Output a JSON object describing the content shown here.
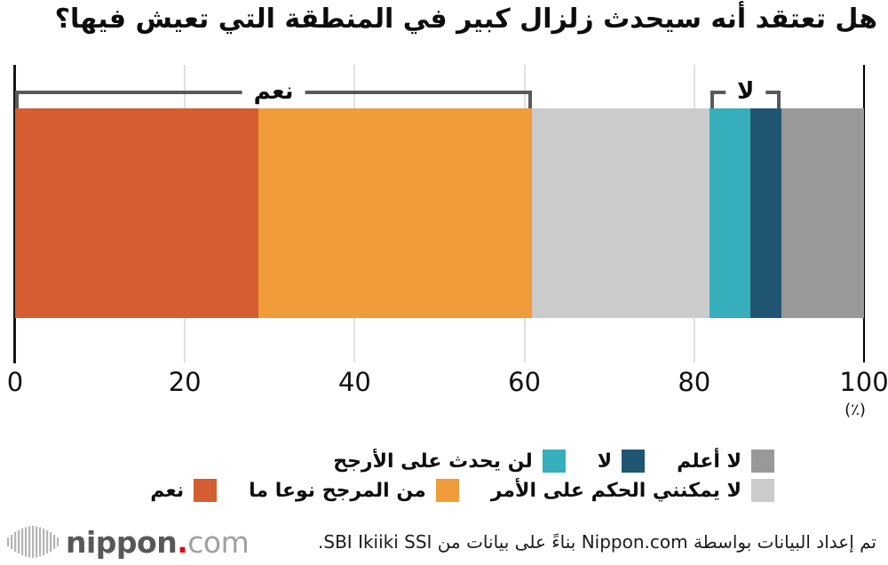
{
  "title": "هل تعتقد أنه سيحدث زلزال كبير في المنطقة التي تعيش فيها؟",
  "chart_data": {
    "type": "bar",
    "stacked": true,
    "orientation": "horizontal",
    "title": "هل تعتقد أنه سيحدث زلزال كبير في المنطقة التي تعيش فيها؟",
    "xlim": [
      0,
      100
    ],
    "x_ticks": [
      0,
      20,
      40,
      60,
      80,
      100
    ],
    "unit_label": "(٪)",
    "grid": true,
    "segments": [
      {
        "label": "نعم",
        "value": 28.7,
        "color": "#d45e31"
      },
      {
        "label": "من المرجح نوعا ما",
        "value": 32.2,
        "color": "#f19c3a"
      },
      {
        "label": "لا يمكنني الحكم على الأمر",
        "value": 20.9,
        "color": "#cbcbcb"
      },
      {
        "label": "لن يحدث على الأرجح",
        "value": 4.8,
        "color": "#36aebb"
      },
      {
        "label": "لا",
        "value": 3.7,
        "color": "#215673"
      },
      {
        "label": "لا أعلم",
        "value": 9.7,
        "color": "#999998"
      }
    ],
    "brackets": [
      {
        "label": "نعم",
        "from": 0,
        "to": 60.9
      },
      {
        "label": "لا",
        "from": 81.9,
        "to": 90.2
      }
    ],
    "legend_position": "bottom"
  },
  "legend": {
    "rows": [
      [
        {
          "label": "لا أعلم",
          "color": "#999998"
        },
        {
          "label": "لا",
          "color": "#215673"
        },
        {
          "label": "لن يحدث على الأرجح",
          "color": "#36aebb"
        }
      ],
      [
        {
          "label": "لا يمكنني الحكم على الأمر",
          "color": "#cbcbcb"
        },
        {
          "label": "من المرجح نوعا ما",
          "color": "#f19c3a"
        },
        {
          "label": "نعم",
          "color": "#d45e31"
        }
      ]
    ]
  },
  "footer": {
    "logo": {
      "nippon": "nippon",
      "dot": ".",
      "com": "com"
    },
    "attribution": "تم إعداد البيانات بواسطة Nippon.com بناءً على بيانات من SBI Ikiiki SSI."
  }
}
